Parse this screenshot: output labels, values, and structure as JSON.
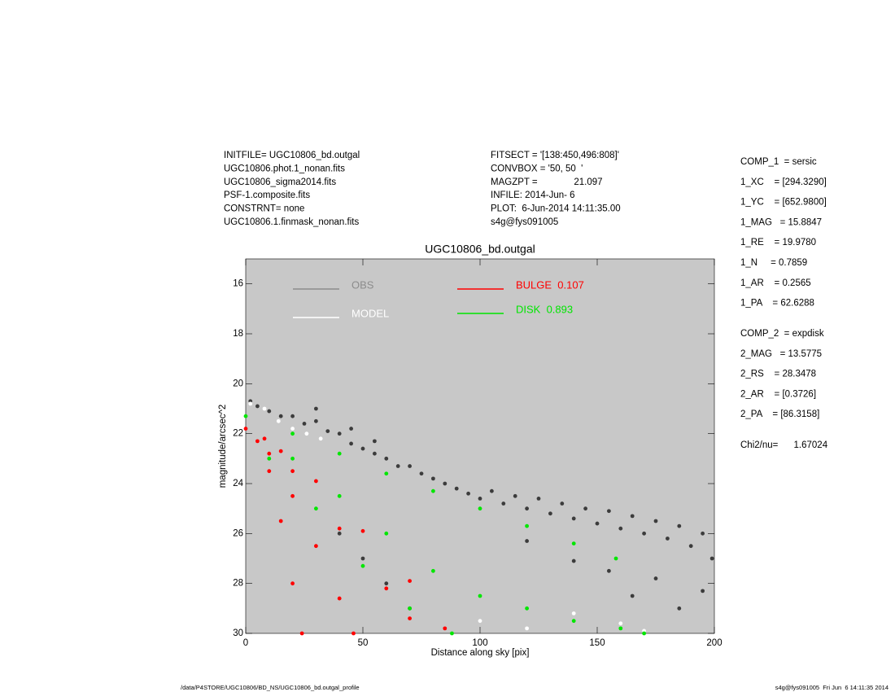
{
  "chart_data": {
    "type": "scatter",
    "title": "UGC10806_bd.outgal",
    "x_label": "Distance along sky [pix]",
    "y_label": "magnitude/arcsec^2",
    "xlim": [
      0,
      200
    ],
    "xticks": [
      0,
      50,
      100,
      150,
      200
    ],
    "ylim": [
      30,
      15
    ],
    "yticks": [
      16,
      18,
      20,
      22,
      24,
      26,
      28,
      30
    ],
    "background": "#c8c8c8",
    "header_left": [
      "INITFILE= UGC10806_bd.outgal",
      "UGC10806.phot.1_nonan.fits",
      "UGC10806_sigma2014.fits",
      "PSF-1.composite.fits",
      "CONSTRNT= none",
      "UGC10806.1.finmask_nonan.fits"
    ],
    "header_middle": [
      "FITSECT = '[138:450,496:808]'",
      "CONVBOX = '50, 50  '",
      "MAGZPT =              21.097",
      "INFILE: 2014-Jun- 6",
      "PLOT:  6-Jun-2014 14:11:35.00",
      "s4g@fys091005"
    ],
    "parameters_1": [
      "COMP_1  = sersic",
      "1_XC    = [294.3290]",
      "1_YC    = [652.9800]",
      "1_MAG   = 15.8847",
      "1_RE    = 19.9780",
      "1_N     = 0.7859",
      "1_AR    = 0.2565",
      "1_PA    = 62.6288"
    ],
    "parameters_2": [
      "COMP_2  = expdisk",
      "2_MAG   = 13.5775",
      "2_RS    = 28.3478",
      "2_AR    = [0.3726]",
      "2_PA    = [86.3158]"
    ],
    "chi2": "Chi2/nu=      1.67024",
    "footer_left": "/data/P4STORE/UGC10806/BD_NS/UGC10806_bd.outgal_profile",
    "footer_right": "s4g@fys091005  Fri Jun  6 14:11:35 2014",
    "series": [
      {
        "name": "OBS",
        "color": "#3c3c3c",
        "legend_color": "#8c8c8c",
        "x": [
          2,
          5,
          10,
          15,
          20,
          25,
          30,
          35,
          40,
          45,
          50,
          55,
          60,
          65,
          70,
          75,
          80,
          85,
          90,
          95,
          100,
          105,
          110,
          115,
          120,
          125,
          130,
          135,
          140,
          145,
          150,
          155,
          160,
          165,
          170,
          175,
          180,
          185,
          190,
          195,
          199,
          155,
          165,
          175,
          185,
          195,
          30,
          45,
          55,
          40,
          50,
          60,
          70,
          120,
          140
        ],
        "y": [
          20.7,
          20.9,
          21.1,
          21.3,
          21.3,
          21.6,
          21.5,
          21.9,
          22.0,
          22.4,
          22.6,
          22.8,
          23.0,
          23.3,
          23.3,
          23.6,
          23.8,
          24.0,
          24.2,
          24.4,
          24.6,
          24.3,
          24.8,
          24.5,
          25.0,
          24.6,
          25.2,
          24.8,
          25.4,
          25.0,
          25.6,
          25.1,
          25.8,
          25.3,
          26.0,
          25.5,
          26.2,
          25.7,
          26.5,
          26.0,
          27.0,
          27.5,
          28.5,
          27.8,
          29.0,
          28.3,
          21.0,
          21.8,
          22.3,
          26.0,
          27.0,
          28.0,
          29.0,
          26.3,
          27.1
        ]
      },
      {
        "name": "MODEL",
        "color": "#ffffff",
        "legend_color": "#ffffff",
        "x": [
          2,
          8,
          14,
          20,
          26,
          32,
          100,
          120,
          140,
          160,
          170
        ],
        "y": [
          20.8,
          21.0,
          21.5,
          21.8,
          22.0,
          22.2,
          29.5,
          29.8,
          29.2,
          29.6,
          29.9
        ]
      },
      {
        "name": "BULGE  0.107",
        "color": "#ff0000",
        "legend_color": "#ff0000",
        "x": [
          0,
          5,
          10,
          15,
          20,
          24,
          10,
          20,
          30,
          40,
          46,
          20,
          40,
          60,
          70,
          30,
          50,
          70,
          85,
          8,
          15
        ],
        "y": [
          21.8,
          22.3,
          23.5,
          25.5,
          28.0,
          30.0,
          22.8,
          24.5,
          26.5,
          28.6,
          30.0,
          23.5,
          25.8,
          28.2,
          29.4,
          23.9,
          25.9,
          27.9,
          29.8,
          22.2,
          22.7
        ]
      },
      {
        "name": "DISK  0.893",
        "color": "#00e600",
        "legend_color": "#00e600",
        "x": [
          0,
          20,
          40,
          60,
          80,
          100,
          120,
          140,
          158,
          20,
          40,
          60,
          80,
          100,
          120,
          140,
          160,
          170,
          10,
          30,
          50,
          70,
          88
        ],
        "y": [
          21.3,
          22.0,
          22.8,
          23.6,
          24.3,
          25.0,
          25.7,
          26.4,
          27.0,
          23.0,
          24.5,
          26.0,
          27.5,
          28.5,
          29.0,
          29.5,
          29.8,
          30.0,
          23.0,
          25.0,
          27.3,
          29.0,
          30.0
        ]
      }
    ]
  }
}
